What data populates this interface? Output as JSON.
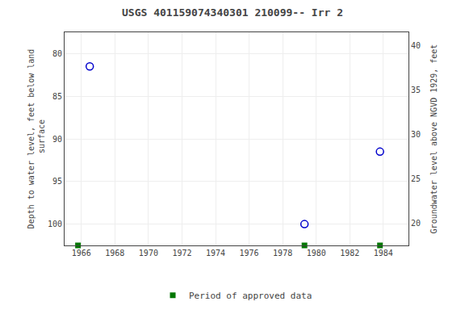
{
  "chart_data": {
    "type": "scatter",
    "title": "USGS 401159074340301 210099-- Irr 2",
    "ylabel": "Depth to water level, feet below land\n surface",
    "y2label": "Groundwater level above NGVD 1929, feet",
    "xlim": [
      1965.0,
      1985.5
    ],
    "xticks": [
      1966,
      1968,
      1970,
      1972,
      1974,
      1976,
      1978,
      1980,
      1982,
      1984
    ],
    "ylim": [
      102.5,
      77.5
    ],
    "yticks": [
      80,
      85,
      90,
      95,
      100
    ],
    "y2lim": [
      17.5,
      41.5
    ],
    "y2ticks": [
      20,
      25,
      30,
      35,
      40
    ],
    "grid": true,
    "legend": "bottom",
    "series": [
      {
        "x": [
          1966.5,
          1979.3,
          1983.8
        ],
        "values": [
          81.5,
          100.0,
          91.5
        ],
        "color": "#0000cc",
        "marker": "circle-open"
      },
      {
        "name": "Period of approved data",
        "x": [
          1965.8,
          1979.3,
          1983.8
        ],
        "values": [
          102.5,
          102.5,
          102.5
        ],
        "color": "#007700",
        "marker": "square"
      }
    ]
  }
}
